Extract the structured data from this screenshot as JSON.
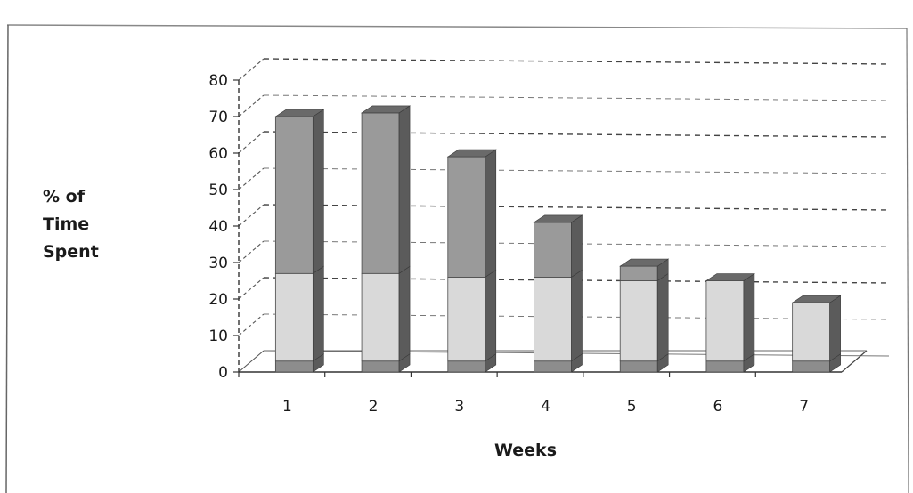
{
  "chart_data": {
    "type": "bar",
    "style": "3d-stacked-column",
    "categories": [
      "1",
      "2",
      "3",
      "4",
      "5",
      "6",
      "7"
    ],
    "series": [
      {
        "values": [
          3,
          3,
          3,
          3,
          3,
          3,
          3
        ],
        "color": "#8d8d8d"
      },
      {
        "values": [
          24,
          24,
          23,
          23,
          22,
          22,
          16
        ],
        "color": "#d9d9d9"
      },
      {
        "values": [
          43,
          44,
          33,
          15,
          4,
          0,
          0
        ],
        "color": "#9a9a9a"
      }
    ],
    "ylim": [
      0,
      80
    ],
    "yticks": [
      0,
      10,
      20,
      30,
      40,
      50,
      60,
      70,
      80
    ],
    "xlabel": "Weeks",
    "ylabel_lines": [
      "% of",
      "Time",
      "Spent"
    ],
    "grid": true,
    "legend": "none"
  }
}
